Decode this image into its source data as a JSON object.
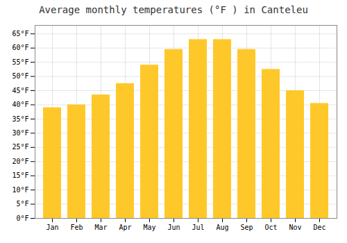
{
  "chart_data": {
    "type": "bar",
    "title": "Average monthly temperatures (°F ) in Canteleu",
    "categories": [
      "Jan",
      "Feb",
      "Mar",
      "Apr",
      "May",
      "Jun",
      "Jul",
      "Aug",
      "Sep",
      "Oct",
      "Nov",
      "Dec"
    ],
    "values": [
      39,
      40,
      43.5,
      47.5,
      54,
      59.5,
      63,
      63,
      59.5,
      52.5,
      45,
      40.5
    ],
    "color": "#FFC82A",
    "ylim": [
      0,
      68
    ],
    "yticks": [
      {
        "value": 0,
        "label": "0°F"
      },
      {
        "value": 5,
        "label": "5°F"
      },
      {
        "value": 10,
        "label": "10°F"
      },
      {
        "value": 15,
        "label": "15°F"
      },
      {
        "value": 20,
        "label": "20°F"
      },
      {
        "value": 25,
        "label": "25°F"
      },
      {
        "value": 30,
        "label": "30°F"
      },
      {
        "value": 35,
        "label": "35°F"
      },
      {
        "value": 40,
        "label": "40°F"
      },
      {
        "value": 45,
        "label": "45°F"
      },
      {
        "value": 50,
        "label": "50°F"
      },
      {
        "value": 55,
        "label": "55°F"
      },
      {
        "value": 60,
        "label": "60°F"
      },
      {
        "value": 65,
        "label": "65°F"
      }
    ],
    "grid": true
  }
}
